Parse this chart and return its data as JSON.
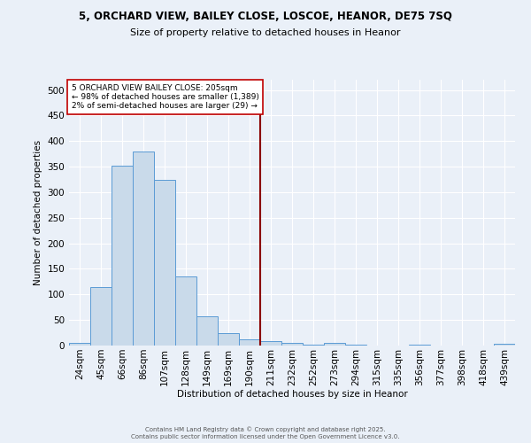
{
  "title_line1": "5, ORCHARD VIEW, BAILEY CLOSE, LOSCOE, HEANOR, DE75 7SQ",
  "title_line2": "Size of property relative to detached houses in Heanor",
  "categories": [
    "24sqm",
    "45sqm",
    "66sqm",
    "86sqm",
    "107sqm",
    "128sqm",
    "149sqm",
    "169sqm",
    "190sqm",
    "211sqm",
    "232sqm",
    "252sqm",
    "273sqm",
    "294sqm",
    "315sqm",
    "335sqm",
    "356sqm",
    "377sqm",
    "398sqm",
    "418sqm",
    "439sqm"
  ],
  "values": [
    5,
    114,
    351,
    379,
    324,
    136,
    57,
    25,
    12,
    8,
    5,
    2,
    5,
    1,
    0,
    0,
    2,
    0,
    0,
    0,
    3
  ],
  "bar_color": "#c9daea",
  "bar_edge_color": "#5b9bd5",
  "background_color": "#eaf0f8",
  "grid_color": "#ffffff",
  "vline_color": "#8b0000",
  "ylabel": "Number of detached properties",
  "xlabel": "Distribution of detached houses by size in Heanor",
  "ylim": [
    0,
    520
  ],
  "yticks": [
    0,
    50,
    100,
    150,
    200,
    250,
    300,
    350,
    400,
    450,
    500
  ],
  "annotation_title": "5 ORCHARD VIEW BAILEY CLOSE: 205sqm",
  "annotation_line1": "← 98% of detached houses are smaller (1,389)",
  "annotation_line2": "2% of semi-detached houses are larger (29) →",
  "footer_line1": "Contains HM Land Registry data © Crown copyright and database right 2025.",
  "footer_line2": "Contains public sector information licensed under the Open Government Licence v3.0."
}
